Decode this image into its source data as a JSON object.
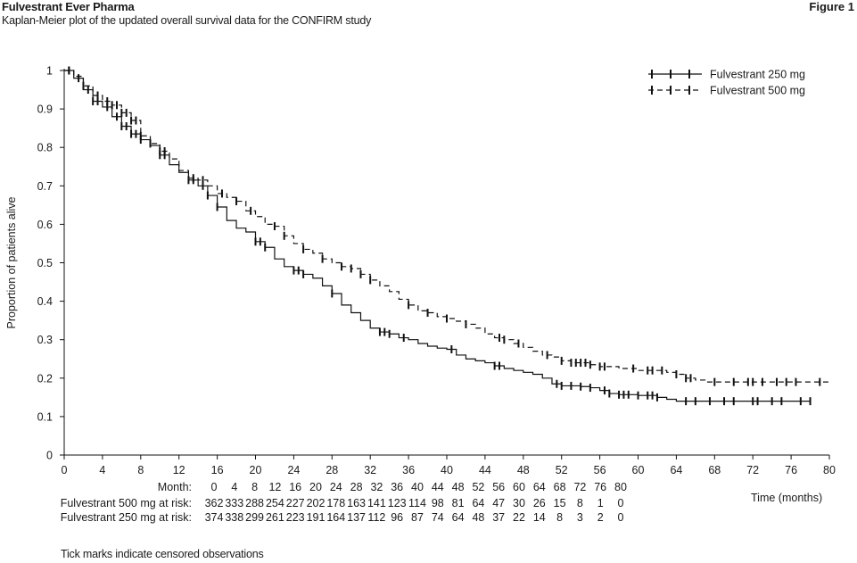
{
  "header": {
    "title": "Fulvestrant Ever Pharma",
    "subtitle": "Kaplan-Meier plot of the updated overall survival data for the CONFIRM study",
    "figure_label": "Figure 1"
  },
  "footnote": "Tick marks indicate censored observations",
  "chart_data": {
    "type": "line",
    "title": "",
    "xlabel": "Time (months)",
    "ylabel": "Proportion of patients alive",
    "xlim": [
      0,
      80
    ],
    "ylim": [
      0,
      1
    ],
    "x_ticks": [
      "0",
      "4",
      "8",
      "12",
      "16",
      "20",
      "24",
      "28",
      "32",
      "36",
      "40",
      "44",
      "48",
      "52",
      "56",
      "60",
      "64",
      "68",
      "72",
      "76",
      "80"
    ],
    "y_ticks": [
      "0",
      "0.1",
      "0.2",
      "0.3",
      "0.4",
      "0.5",
      "0.6",
      "0.7",
      "0.8",
      "0.9",
      "1"
    ],
    "grid": false,
    "legend_position": "top-right",
    "series": [
      {
        "name": "Fulvestrant 250 mg",
        "style": "solid",
        "points": [
          [
            0,
            1.0
          ],
          [
            1,
            0.98
          ],
          [
            2,
            0.95
          ],
          [
            3,
            0.92
          ],
          [
            4,
            0.905
          ],
          [
            5,
            0.88
          ],
          [
            6,
            0.855
          ],
          [
            7,
            0.835
          ],
          [
            8,
            0.82
          ],
          [
            9,
            0.805
          ],
          [
            10,
            0.78
          ],
          [
            11,
            0.755
          ],
          [
            12,
            0.735
          ],
          [
            13,
            0.715
          ],
          [
            14,
            0.7
          ],
          [
            15,
            0.675
          ],
          [
            16,
            0.645
          ],
          [
            17,
            0.61
          ],
          [
            18,
            0.59
          ],
          [
            19,
            0.58
          ],
          [
            20,
            0.555
          ],
          [
            21,
            0.54
          ],
          [
            22,
            0.51
          ],
          [
            23,
            0.49
          ],
          [
            24,
            0.48
          ],
          [
            25,
            0.47
          ],
          [
            26,
            0.46
          ],
          [
            27,
            0.44
          ],
          [
            28,
            0.42
          ],
          [
            29,
            0.39
          ],
          [
            30,
            0.37
          ],
          [
            31,
            0.35
          ],
          [
            32,
            0.33
          ],
          [
            33,
            0.32
          ],
          [
            34,
            0.315
          ],
          [
            35,
            0.305
          ],
          [
            36,
            0.3
          ],
          [
            37,
            0.29
          ],
          [
            38,
            0.283
          ],
          [
            39,
            0.278
          ],
          [
            40,
            0.275
          ],
          [
            41,
            0.26
          ],
          [
            42,
            0.25
          ],
          [
            43,
            0.245
          ],
          [
            44,
            0.24
          ],
          [
            45,
            0.232
          ],
          [
            46,
            0.225
          ],
          [
            47,
            0.22
          ],
          [
            48,
            0.215
          ],
          [
            49,
            0.21
          ],
          [
            50,
            0.2
          ],
          [
            51,
            0.185
          ],
          [
            52,
            0.18
          ],
          [
            54,
            0.178
          ],
          [
            55,
            0.175
          ],
          [
            56,
            0.168
          ],
          [
            57,
            0.16
          ],
          [
            58,
            0.157
          ],
          [
            60,
            0.155
          ],
          [
            62,
            0.15
          ],
          [
            63,
            0.145
          ],
          [
            64,
            0.14
          ],
          [
            66,
            0.14
          ],
          [
            78,
            0.14
          ]
        ],
        "censored": [
          0.5,
          1.5,
          2.5,
          3,
          3.5,
          4.5,
          5.5,
          6,
          6.5,
          7,
          7.5,
          8,
          10,
          10.5,
          13,
          13.5,
          14.5,
          15,
          16,
          20,
          20.5,
          21,
          24,
          24.5,
          25,
          28,
          33,
          33.5,
          34,
          35.5,
          40.5,
          45,
          45.5,
          51.5,
          52,
          53,
          54,
          55,
          56.5,
          57,
          58,
          58.5,
          59,
          60,
          61,
          61.5,
          62,
          65,
          66,
          67.5,
          69,
          70,
          72,
          72.5,
          74,
          75,
          77,
          78
        ]
      },
      {
        "name": "Fulvestrant 500 mg",
        "style": "dashed",
        "points": [
          [
            0,
            1.0
          ],
          [
            1,
            0.985
          ],
          [
            2,
            0.96
          ],
          [
            3,
            0.935
          ],
          [
            4,
            0.92
          ],
          [
            5,
            0.91
          ],
          [
            6,
            0.89
          ],
          [
            7,
            0.87
          ],
          [
            8,
            0.83
          ],
          [
            9,
            0.81
          ],
          [
            10,
            0.79
          ],
          [
            11,
            0.77
          ],
          [
            12,
            0.74
          ],
          [
            13,
            0.72
          ],
          [
            14,
            0.715
          ],
          [
            15,
            0.7
          ],
          [
            16,
            0.68
          ],
          [
            17,
            0.67
          ],
          [
            18,
            0.66
          ],
          [
            19,
            0.635
          ],
          [
            20,
            0.62
          ],
          [
            21,
            0.6
          ],
          [
            22,
            0.595
          ],
          [
            23,
            0.57
          ],
          [
            24,
            0.55
          ],
          [
            25,
            0.535
          ],
          [
            26,
            0.525
          ],
          [
            27,
            0.51
          ],
          [
            28,
            0.5
          ],
          [
            29,
            0.49
          ],
          [
            30,
            0.485
          ],
          [
            31,
            0.47
          ],
          [
            32,
            0.455
          ],
          [
            33,
            0.44
          ],
          [
            34,
            0.425
          ],
          [
            35,
            0.405
          ],
          [
            36,
            0.39
          ],
          [
            37,
            0.375
          ],
          [
            38,
            0.37
          ],
          [
            39,
            0.36
          ],
          [
            40,
            0.355
          ],
          [
            41,
            0.348
          ],
          [
            42,
            0.34
          ],
          [
            43,
            0.33
          ],
          [
            44,
            0.315
          ],
          [
            45,
            0.305
          ],
          [
            46,
            0.3
          ],
          [
            47,
            0.29
          ],
          [
            48,
            0.28
          ],
          [
            49,
            0.27
          ],
          [
            50,
            0.26
          ],
          [
            51,
            0.255
          ],
          [
            52,
            0.245
          ],
          [
            53,
            0.24
          ],
          [
            55,
            0.235
          ],
          [
            56,
            0.23
          ],
          [
            58,
            0.225
          ],
          [
            60,
            0.22
          ],
          [
            63,
            0.215
          ],
          [
            64,
            0.21
          ],
          [
            65,
            0.2
          ],
          [
            66,
            0.195
          ],
          [
            67,
            0.19
          ],
          [
            80,
            0.19
          ]
        ],
        "censored": [
          0.5,
          2,
          3.5,
          4.5,
          5,
          5.5,
          6,
          6.5,
          7,
          7.5,
          8,
          9,
          10,
          10.5,
          13.5,
          14.5,
          16.5,
          18,
          19.5,
          22,
          23,
          25,
          27,
          29,
          30,
          31,
          32,
          36,
          38,
          40,
          42,
          45.5,
          46,
          47.5,
          50.5,
          52,
          53,
          53.5,
          54,
          54.5,
          55,
          56,
          56.5,
          59.5,
          61,
          61.5,
          62.5,
          64,
          65,
          65.5,
          68,
          70,
          71.5,
          72,
          73,
          74.5,
          75.5,
          76.5,
          79
        ]
      }
    ],
    "at_risk": {
      "row_label": "Month:",
      "months": [
        "0",
        "4",
        "8",
        "12",
        "16",
        "20",
        "24",
        "28",
        "32",
        "36",
        "40",
        "44",
        "48",
        "52",
        "56",
        "60",
        "64",
        "68",
        "72",
        "76",
        "80"
      ],
      "rows": [
        {
          "label": "Fulvestrant 500 mg at risk:",
          "values": [
            "362",
            "333",
            "288",
            "254",
            "227",
            "202",
            "178",
            "163",
            "141",
            "123",
            "114",
            "98",
            "81",
            "64",
            "47",
            "30",
            "26",
            "15",
            "8",
            "1",
            "0"
          ]
        },
        {
          "label": "Fulvestrant 250 mg at risk:",
          "values": [
            "374",
            "338",
            "299",
            "261",
            "223",
            "191",
            "164",
            "137",
            "112",
            "96",
            "87",
            "74",
            "64",
            "48",
            "37",
            "22",
            "14",
            "8",
            "3",
            "2",
            "0"
          ]
        }
      ]
    }
  }
}
